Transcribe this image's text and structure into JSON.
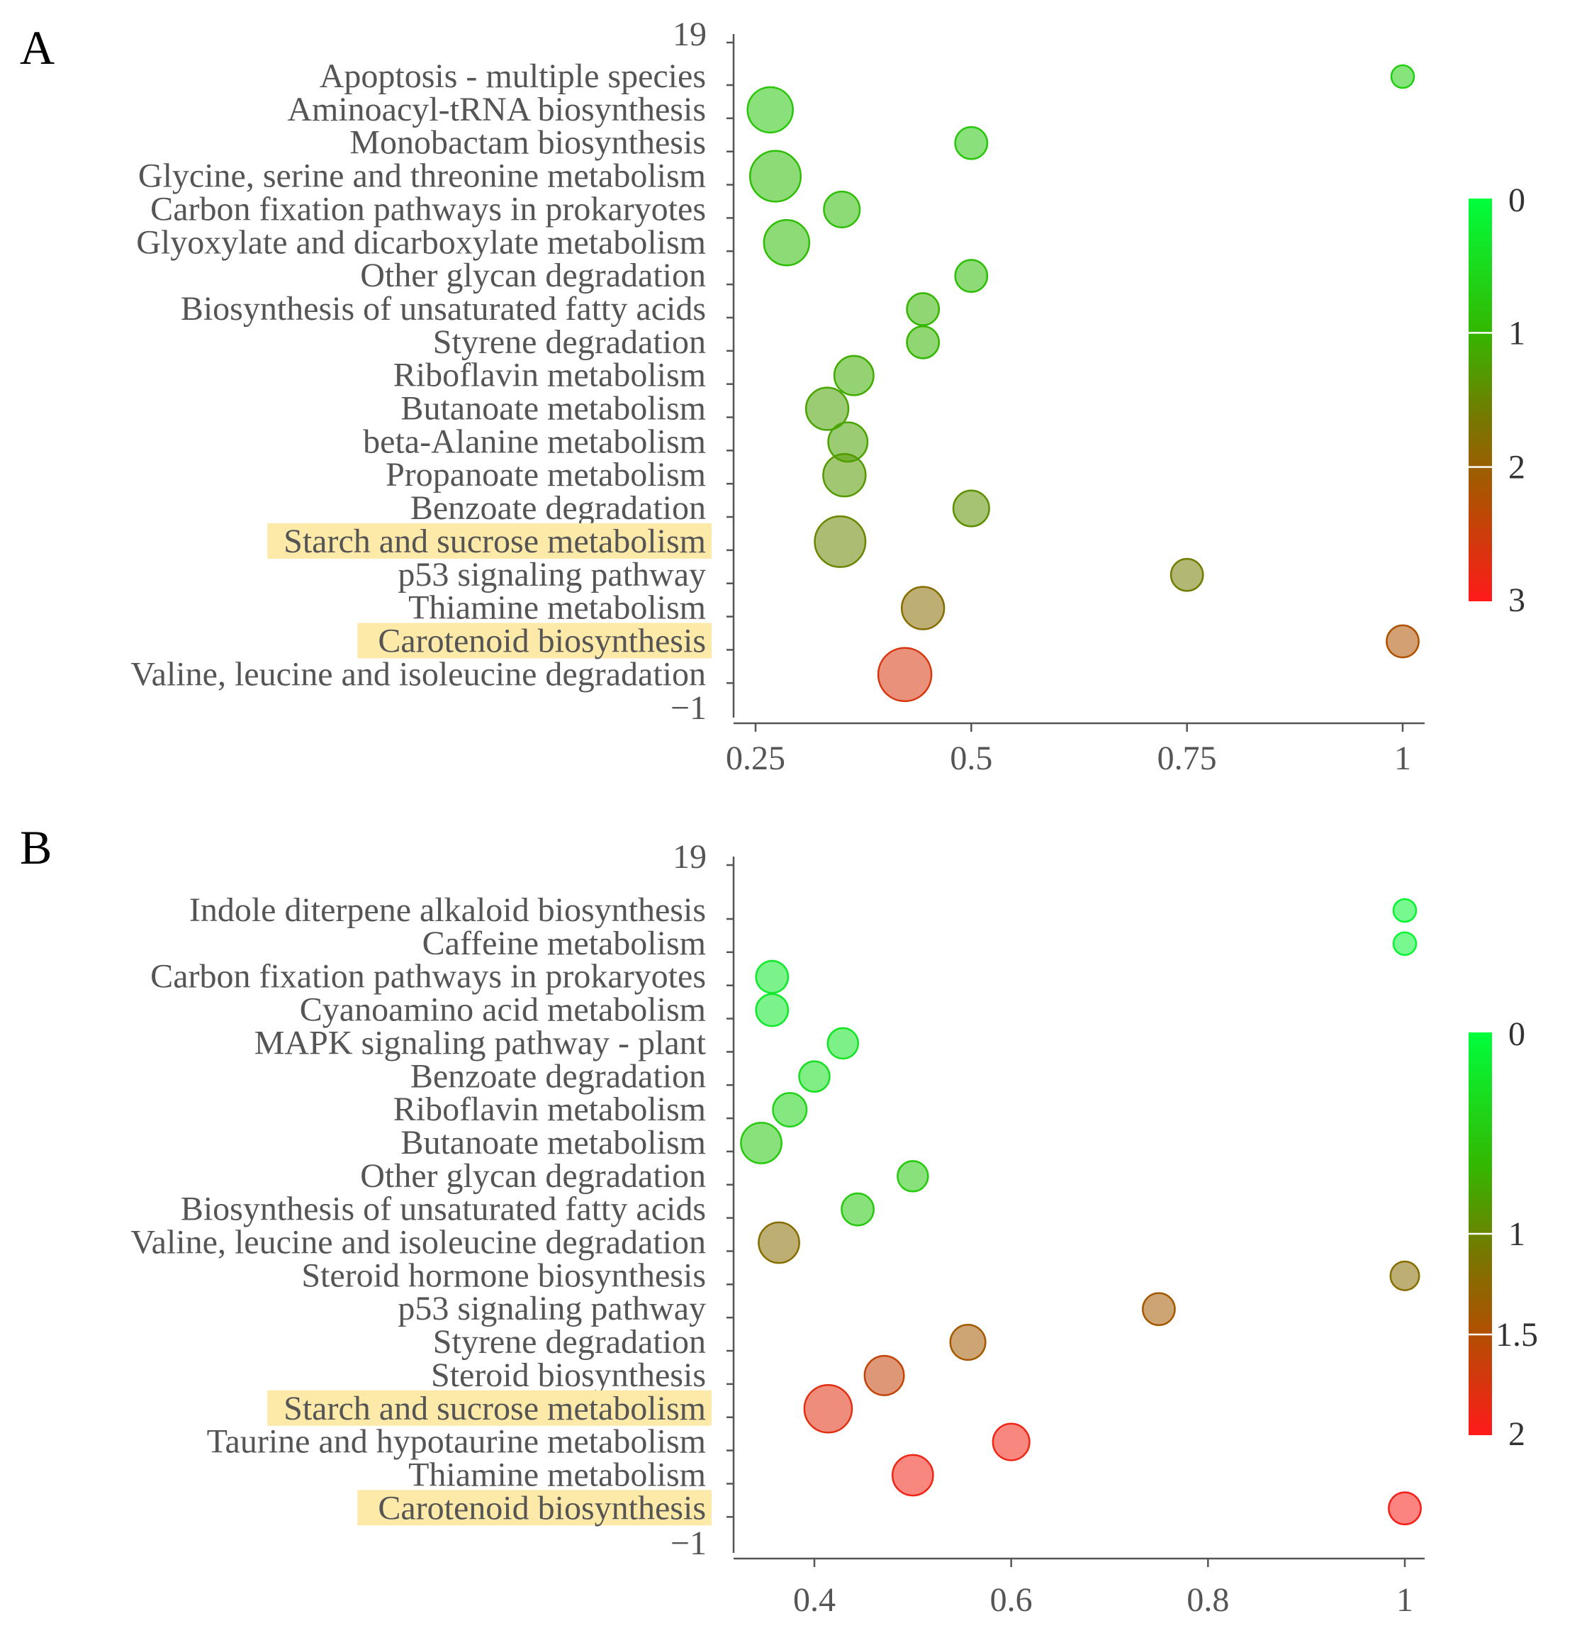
{
  "colors": {
    "low": "#00ff3c",
    "mid": "#777700",
    "high": "#ff1a1a",
    "highlight": "#fde9a8",
    "axis": "#555555"
  },
  "chart_data": [
    {
      "type": "scatter",
      "panel_label": "A",
      "xticks": [
        "0.25",
        "0.5",
        "0.75",
        "1"
      ],
      "y_end_labels": {
        "top": "19",
        "bottom": "−1"
      },
      "xlim": [
        0.23,
        1.03
      ],
      "categories": [
        "Apoptosis - multiple species",
        "Aminoacyl-tRNA biosynthesis",
        "Monobactam biosynthesis",
        "Glycine, serine and threonine metabolism",
        "Carbon fixation pathways in prokaryotes",
        "Glyoxylate and dicarboxylate metabolism",
        "Other glycan degradation",
        "Biosynthesis of unsaturated fatty acids",
        "Styrene degradation",
        "Riboflavin metabolism",
        "Butanoate metabolism",
        "beta-Alanine metabolism",
        "Propanoate metabolism",
        "Benzoate degradation",
        "Starch and sucrose metabolism",
        "p53 signaling pathway",
        "Thiamine metabolism",
        "Carotenoid biosynthesis",
        "Valine, leucine and isoleucine degradation"
      ],
      "highlighted": [
        "Starch and sucrose metabolism",
        "Carotenoid biosynthesis"
      ],
      "x": [
        1.0,
        0.267,
        0.5,
        0.273,
        0.35,
        0.286,
        0.5,
        0.444,
        0.444,
        0.364,
        0.333,
        0.357,
        0.353,
        0.5,
        0.348,
        0.75,
        0.444,
        1.0,
        0.423
      ],
      "color_value": [
        0.7,
        0.8,
        0.8,
        0.9,
        0.9,
        0.9,
        0.9,
        1.0,
        1.0,
        1.1,
        1.2,
        1.2,
        1.3,
        1.4,
        1.5,
        1.6,
        1.8,
        2.2,
        2.6
      ],
      "size_count": [
        1,
        4,
        2,
        5,
        2.5,
        4,
        2,
        2,
        2,
        3,
        3.5,
        3,
        3.5,
        2.5,
        5,
        2,
        3.5,
        2,
        5.5
      ],
      "colorbar": {
        "ticks": [
          "0",
          "1",
          "2",
          "3"
        ],
        "range": [
          0,
          3
        ]
      }
    },
    {
      "type": "scatter",
      "panel_label": "B",
      "xticks": [
        "0.4",
        "0.6",
        "0.8",
        "1"
      ],
      "y_end_labels": {
        "top": "19",
        "bottom": "−1"
      },
      "xlim": [
        0.33,
        1.02
      ],
      "categories": [
        "Indole diterpene alkaloid biosynthesis",
        "Caffeine metabolism",
        "Carbon fixation pathways in prokaryotes",
        "Cyanoamino acid metabolism",
        "MAPK signaling pathway - plant",
        "Benzoate degradation",
        "Riboflavin metabolism",
        "Butanoate metabolism",
        "Other glycan degradation",
        "Biosynthesis of unsaturated fatty acids",
        "Valine, leucine and isoleucine degradation",
        "Steroid hormone biosynthesis",
        "p53 signaling pathway",
        "Styrene degradation",
        "Steroid biosynthesis",
        "Starch and sucrose metabolism",
        "Taurine and hypotaurine metabolism",
        "Thiamine metabolism",
        "Carotenoid biosynthesis"
      ],
      "highlighted": [
        "Starch and sucrose metabolism",
        "Carotenoid biosynthesis"
      ],
      "x": [
        1.0,
        1.0,
        0.357,
        0.357,
        0.429,
        0.4,
        0.375,
        0.346,
        0.5,
        0.444,
        0.364,
        1.0,
        0.75,
        0.556,
        0.471,
        0.414,
        0.6,
        0.5,
        1.0
      ],
      "color_value": [
        0.1,
        0.1,
        0.2,
        0.2,
        0.25,
        0.3,
        0.4,
        0.5,
        0.5,
        0.5,
        1.2,
        1.2,
        1.4,
        1.4,
        1.6,
        1.8,
        1.9,
        1.9,
        1.95
      ],
      "size_count": [
        1,
        1,
        2,
        2,
        1.8,
        1.8,
        2.2,
        3.2,
        1.8,
        2,
        3.2,
        1.6,
        2,
        2.4,
        3,
        4.4,
        2.6,
        3.2,
        2
      ],
      "colorbar": {
        "ticks": [
          "0",
          "1",
          "1.5",
          "2"
        ],
        "range": [
          0,
          2
        ]
      }
    }
  ]
}
